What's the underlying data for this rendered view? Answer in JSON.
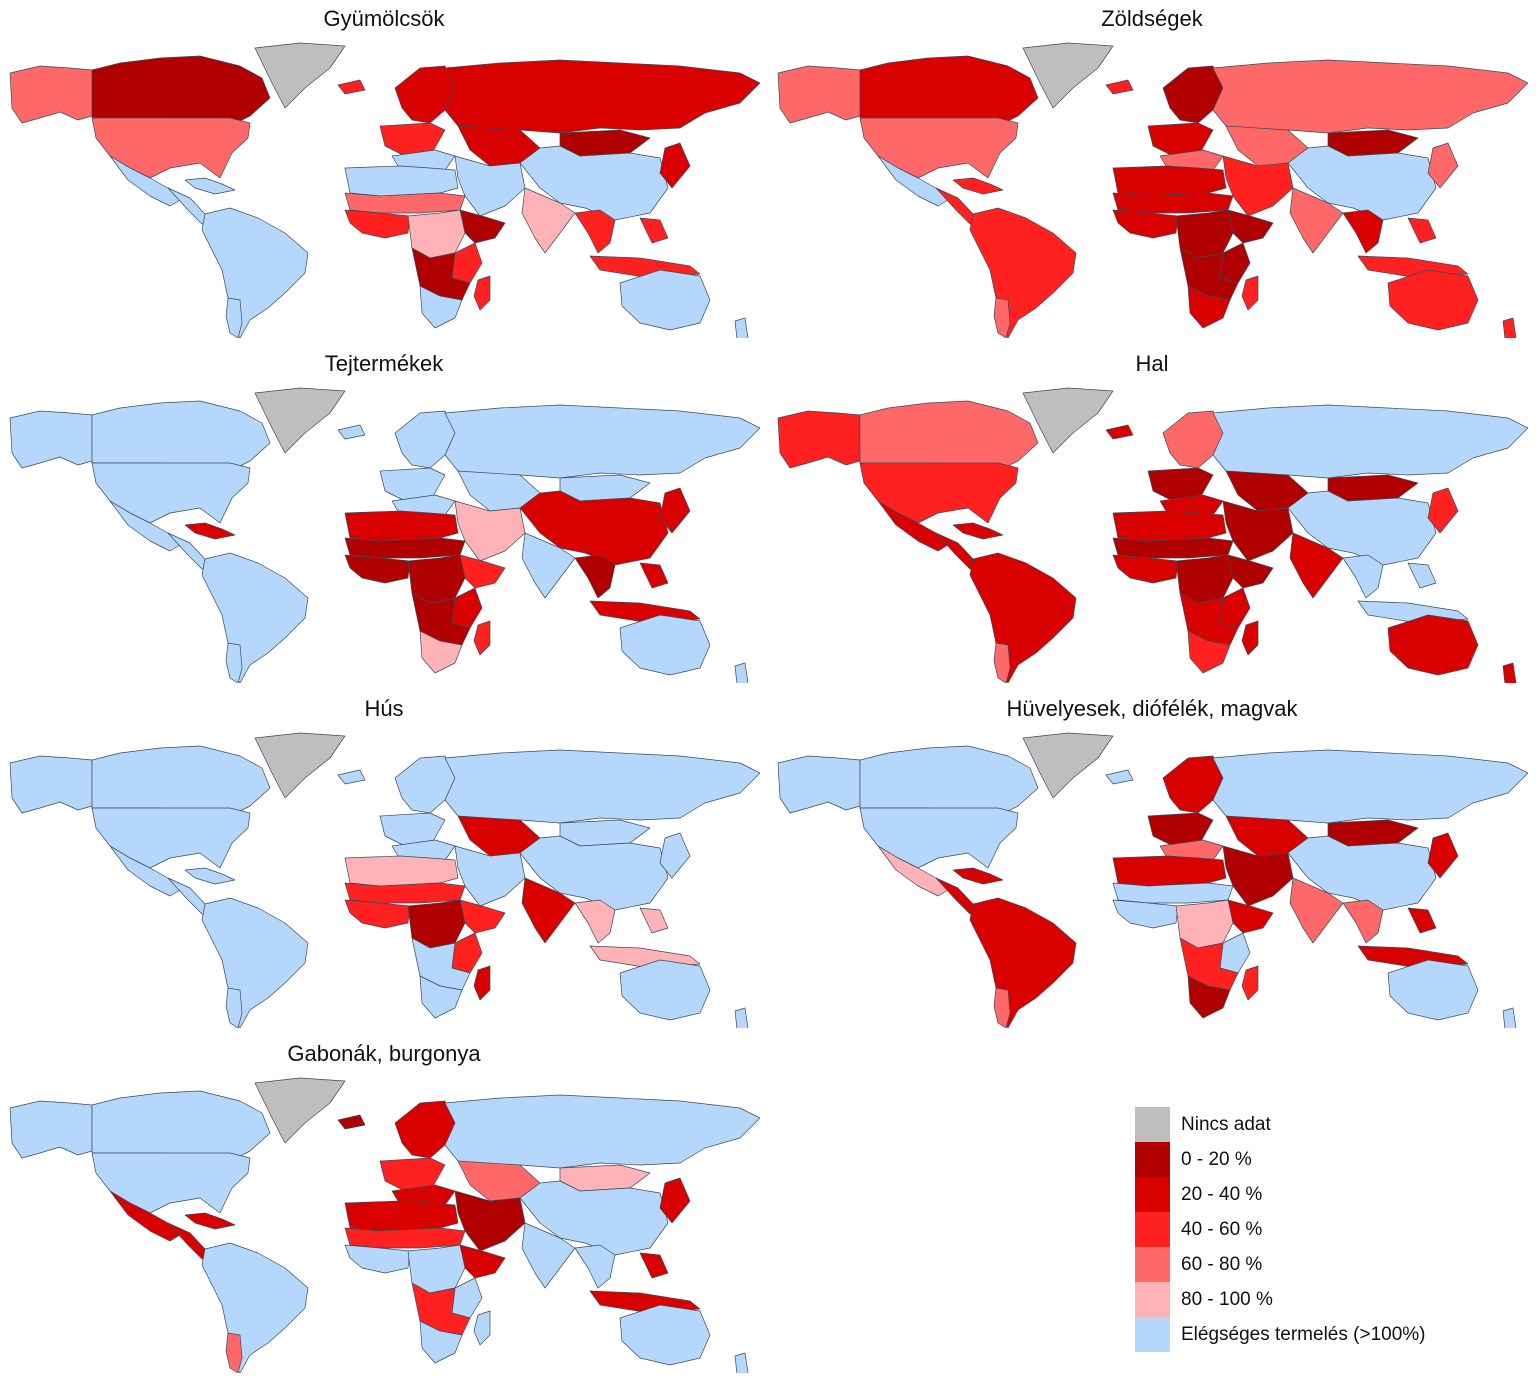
{
  "panels": [
    {
      "id": "fruits",
      "title": "Gyümölcsök",
      "regions": {
        "canada": "b0",
        "alaska": "b3",
        "usa": "b3",
        "greenland": "nd",
        "mexico": "ok",
        "central_america": "ok",
        "caribbean": "ok",
        "south_america": "ok",
        "patagonia": "ok",
        "iceland": "b2",
        "europe_north": "b1",
        "europe_west": "b2",
        "europe_south": "ok",
        "russia": "b1",
        "central_asia": "b1",
        "mongolia": "b0",
        "china": "ok",
        "korea_japan": "b1",
        "middle_east": "ok",
        "india": "b4",
        "south_east_asia": "b2",
        "indonesia": "b2",
        "philippines": "b2",
        "north_africa": "ok",
        "sahel": "b3",
        "west_africa": "b2",
        "horn_africa": "b0",
        "central_africa": "b4",
        "east_africa": "b2",
        "southern_africa": "b0",
        "south_africa": "ok",
        "madagascar": "b2",
        "australia": "ok",
        "new_zealand": "ok"
      }
    },
    {
      "id": "vegetables",
      "title": "Zöldségek",
      "regions": {
        "canada": "b1",
        "alaska": "b3",
        "usa": "b3",
        "greenland": "nd",
        "mexico": "ok",
        "central_america": "b2",
        "caribbean": "b2",
        "south_america": "b2",
        "patagonia": "b3",
        "iceland": "b2",
        "europe_north": "b0",
        "europe_west": "b1",
        "europe_south": "b3",
        "russia": "b3",
        "central_asia": "b3",
        "mongolia": "b0",
        "china": "ok",
        "korea_japan": "b3",
        "middle_east": "b2",
        "india": "b3",
        "south_east_asia": "b1",
        "indonesia": "b2",
        "philippines": "b2",
        "north_africa": "b1",
        "sahel": "b1",
        "west_africa": "b1",
        "horn_africa": "b0",
        "central_africa": "b0",
        "east_africa": "b0",
        "southern_africa": "b0",
        "south_africa": "b1",
        "madagascar": "b2",
        "australia": "b2",
        "new_zealand": "b2"
      }
    },
    {
      "id": "dairy",
      "title": "Tejtermékek",
      "regions": {
        "canada": "ok",
        "alaska": "ok",
        "usa": "ok",
        "greenland": "nd",
        "mexico": "ok",
        "central_america": "ok",
        "caribbean": "b1",
        "south_america": "ok",
        "patagonia": "ok",
        "iceland": "ok",
        "europe_north": "ok",
        "europe_west": "ok",
        "europe_south": "ok",
        "russia": "ok",
        "central_asia": "ok",
        "mongolia": "ok",
        "china": "b1",
        "korea_japan": "b1",
        "middle_east": "b4",
        "india": "ok",
        "south_east_asia": "b0",
        "indonesia": "b1",
        "philippines": "b1",
        "north_africa": "b1",
        "sahel": "b0",
        "west_africa": "b0",
        "horn_africa": "b2",
        "central_africa": "b0",
        "east_africa": "b1",
        "southern_africa": "b0",
        "south_africa": "b4",
        "madagascar": "b2",
        "australia": "ok",
        "new_zealand": "ok"
      }
    },
    {
      "id": "fish",
      "title": "Hal",
      "regions": {
        "canada": "b3",
        "alaska": "b2",
        "usa": "b2",
        "greenland": "nd",
        "mexico": "b1",
        "central_america": "b1",
        "caribbean": "b1",
        "south_america": "b1",
        "patagonia": "b3",
        "iceland": "b1",
        "europe_north": "b3",
        "europe_west": "b0",
        "europe_south": "b1",
        "russia": "ok",
        "central_asia": "b0",
        "mongolia": "b0",
        "china": "ok",
        "korea_japan": "b2",
        "middle_east": "b0",
        "india": "b1",
        "south_east_asia": "ok",
        "indonesia": "ok",
        "philippines": "ok",
        "north_africa": "b1",
        "sahel": "b0",
        "west_africa": "b1",
        "horn_africa": "b0",
        "central_africa": "b0",
        "east_africa": "b1",
        "southern_africa": "b1",
        "south_africa": "b2",
        "madagascar": "b1",
        "australia": "b1",
        "new_zealand": "b1"
      }
    },
    {
      "id": "meat",
      "title": "Hús",
      "regions": {
        "canada": "ok",
        "alaska": "ok",
        "usa": "ok",
        "greenland": "nd",
        "mexico": "ok",
        "central_america": "ok",
        "caribbean": "ok",
        "south_america": "ok",
        "patagonia": "ok",
        "iceland": "ok",
        "europe_north": "ok",
        "europe_west": "ok",
        "europe_south": "ok",
        "russia": "ok",
        "central_asia": "b1",
        "mongolia": "ok",
        "china": "ok",
        "korea_japan": "ok",
        "middle_east": "ok",
        "india": "b1",
        "south_east_asia": "b4",
        "indonesia": "b4",
        "philippines": "b4",
        "north_africa": "b4",
        "sahel": "b2",
        "west_africa": "b2",
        "horn_africa": "b2",
        "central_africa": "b0",
        "east_africa": "b2",
        "southern_africa": "ok",
        "south_africa": "ok",
        "madagascar": "b1",
        "australia": "ok",
        "new_zealand": "ok"
      }
    },
    {
      "id": "legumes",
      "title": "Hüvelyesek, diófélék, magvak",
      "regions": {
        "canada": "ok",
        "alaska": "ok",
        "usa": "ok",
        "greenland": "nd",
        "mexico": "b4",
        "central_america": "b1",
        "caribbean": "b1",
        "south_america": "b1",
        "patagonia": "b3",
        "iceland": "ok",
        "europe_north": "b1",
        "europe_west": "b0",
        "europe_south": "b3",
        "russia": "ok",
        "central_asia": "b1",
        "mongolia": "b0",
        "china": "ok",
        "korea_japan": "b1",
        "middle_east": "b0",
        "india": "b3",
        "south_east_asia": "b3",
        "indonesia": "b1",
        "philippines": "b1",
        "north_africa": "b1",
        "sahel": "ok",
        "west_africa": "ok",
        "horn_africa": "b1",
        "central_africa": "b4",
        "east_africa": "ok",
        "southern_africa": "b2",
        "south_africa": "b0",
        "madagascar": "b2",
        "australia": "ok",
        "new_zealand": "ok"
      }
    },
    {
      "id": "cereals",
      "title": "Gabonák, burgonya",
      "regions": {
        "canada": "ok",
        "alaska": "ok",
        "usa": "ok",
        "greenland": "nd",
        "mexico": "b1",
        "central_america": "b1",
        "caribbean": "b1",
        "south_america": "ok",
        "patagonia": "b3",
        "iceland": "b0",
        "europe_north": "b1",
        "europe_west": "b2",
        "europe_south": "b1",
        "russia": "ok",
        "central_asia": "b3",
        "mongolia": "b4",
        "china": "ok",
        "korea_japan": "b1",
        "middle_east": "b0",
        "india": "ok",
        "south_east_asia": "ok",
        "indonesia": "b1",
        "philippines": "b1",
        "north_africa": "b1",
        "sahel": "b2",
        "west_africa": "ok",
        "horn_africa": "b1",
        "central_africa": "ok",
        "east_africa": "ok",
        "southern_africa": "b2",
        "south_africa": "ok",
        "madagascar": "ok",
        "australia": "ok",
        "new_zealand": "ok"
      }
    }
  ],
  "legend": [
    {
      "key": "nd",
      "label": "Nincs adat",
      "color": "#bebebe"
    },
    {
      "key": "b0",
      "label": "0 - 20 %",
      "color": "#b00000"
    },
    {
      "key": "b1",
      "label": "20 - 40 %",
      "color": "#d90000"
    },
    {
      "key": "b2",
      "label": "40 - 60 %",
      "color": "#ff2020"
    },
    {
      "key": "b3",
      "label": "60 - 80 %",
      "color": "#ff6868"
    },
    {
      "key": "b4",
      "label": "80 - 100 %",
      "color": "#ffb3b6"
    },
    {
      "key": "ok",
      "label": "Elégséges termelés (>100%)",
      "color": "#b4d7fb"
    }
  ]
}
